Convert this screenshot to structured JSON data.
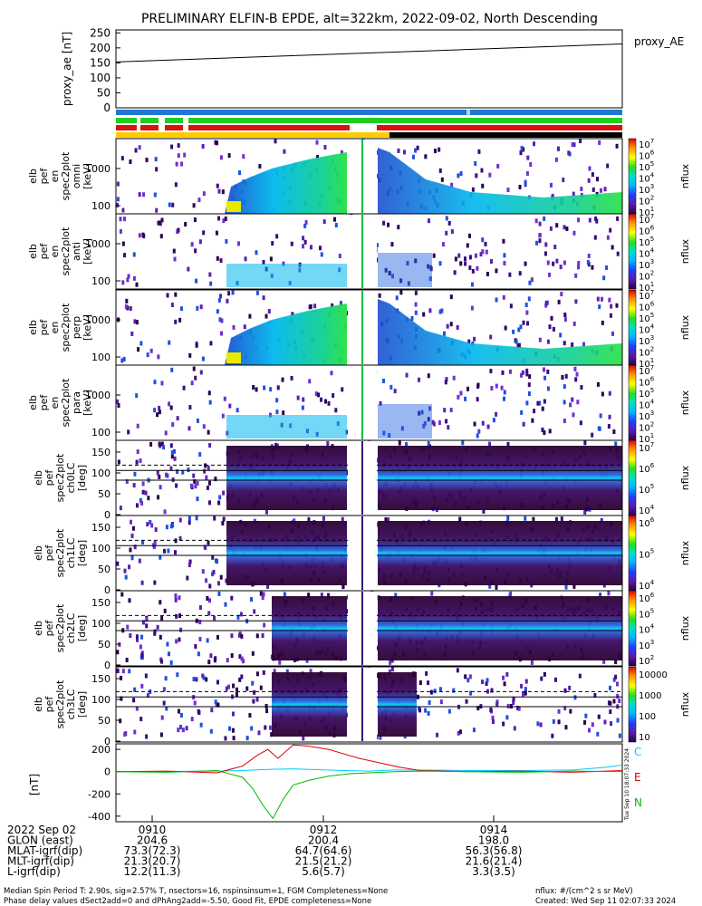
{
  "title": "PRELIMINARY ELFIN-B EPDE, alt=322km, 2022-09-02, North Descending",
  "colors": {
    "bar_blue": "#1f77d4",
    "bar_green": "#22cc22",
    "bar_red": "#dd1111",
    "bar_yellow": "#ffcc00",
    "bar_black": "#000000",
    "ae_line": "#000000",
    "mag_c": "#00ccff",
    "mag_e": "#dd0000",
    "mag_n": "#00bb00"
  },
  "colorbar_ticks_a": [
    "10",
    "10",
    "10",
    "10",
    "10",
    "10",
    "10"
  ],
  "colorbar_exps_a": [
    "1",
    "2",
    "3",
    "4",
    "5",
    "6",
    "7"
  ],
  "panels": [
    {
      "ylabel": [
        "elb",
        "pef",
        "en",
        "spec2plot",
        "omni",
        "[keV]"
      ],
      "yticks": [
        "1000",
        "100"
      ],
      "cb_label": "nflux"
    },
    {
      "ylabel": [
        "elb",
        "pef",
        "en",
        "spec2plot",
        "anti",
        "[keV]"
      ],
      "yticks": [
        "1000",
        "100"
      ],
      "cb_label": "nflux"
    },
    {
      "ylabel": [
        "elb",
        "pef",
        "en",
        "spec2plot",
        "perp",
        "[keV]"
      ],
      "yticks": [
        "1000",
        "100"
      ],
      "cb_label": "nflux"
    },
    {
      "ylabel": [
        "elb",
        "pef",
        "en",
        "spec2plot",
        "para",
        "[keV]"
      ],
      "yticks": [
        "1000",
        "100"
      ],
      "cb_label": "nflux"
    },
    {
      "ylabel": [
        "elb",
        "pef",
        "spec2plot",
        "ch0LC",
        "[deg]"
      ],
      "yticks": [
        "150",
        "100",
        "50",
        "0"
      ],
      "cb_label": "nflux",
      "cb_ticks": [
        "10",
        "10",
        "10",
        "10"
      ],
      "cb_exps": [
        "7",
        "6",
        "5",
        "4"
      ]
    },
    {
      "ylabel": [
        "elb",
        "pef",
        "spec2plot",
        "ch1LC",
        "[deg]"
      ],
      "yticks": [
        "150",
        "100",
        "50",
        "0"
      ],
      "cb_label": "nflux",
      "cb_ticks": [
        "10",
        "10",
        "10"
      ],
      "cb_exps": [
        "6",
        "5",
        "4"
      ]
    },
    {
      "ylabel": [
        "elb",
        "pef",
        "spec2plot",
        "ch2LC",
        "[deg]"
      ],
      "yticks": [
        "150",
        "100",
        "50",
        "0"
      ],
      "cb_label": "nflux",
      "cb_ticks": [
        "10",
        "10",
        "10",
        "10",
        "10"
      ],
      "cb_exps": [
        "6",
        "5",
        "4",
        "3",
        "2"
      ]
    },
    {
      "ylabel": [
        "elb",
        "pef",
        "spec2plot",
        "ch3LC",
        "[deg]"
      ],
      "yticks": [
        "150",
        "100",
        "50",
        "0"
      ],
      "cb_label": "nflux",
      "cb_ticks": [
        "10000",
        "1000",
        "100",
        "10"
      ]
    }
  ],
  "chart_data": [
    {
      "type": "line",
      "title": "PRELIMINARY ELFIN-B EPDE, alt=322km, 2022-09-02, North Descending",
      "ylabel": "proxy_ae [nT]",
      "legend": "proxy_AE",
      "ylim": [
        0,
        260
      ],
      "yticks": [
        "250",
        "200",
        "150",
        "100",
        "50",
        "0"
      ],
      "series": [
        {
          "name": "proxy_AE",
          "x": [
            "0909:00",
            "0915:50"
          ],
          "y": [
            153,
            213
          ]
        }
      ]
    },
    {
      "type": "line",
      "ylabel": "[nT]",
      "ylim": [
        -450,
        250
      ],
      "yticks": [
        "200",
        "0",
        "-200",
        "-400"
      ],
      "legend": [
        "C",
        "E",
        "N"
      ],
      "series": [
        {
          "name": "C",
          "x": [
            0,
            0.2,
            0.25,
            0.3,
            0.35,
            0.45,
            0.5,
            0.55,
            0.6,
            0.7,
            0.8,
            0.9,
            0.97,
            1.0
          ],
          "y": [
            0,
            5,
            10,
            20,
            25,
            10,
            5,
            15,
            15,
            10,
            10,
            15,
            40,
            60
          ]
        },
        {
          "name": "E",
          "x": [
            0,
            0.1,
            0.2,
            0.25,
            0.28,
            0.3,
            0.32,
            0.35,
            0.38,
            0.42,
            0.45,
            0.48,
            0.52,
            0.56,
            0.6,
            0.7,
            0.8,
            0.9,
            1.0
          ],
          "y": [
            0,
            5,
            -10,
            50,
            150,
            200,
            120,
            240,
            230,
            200,
            160,
            120,
            80,
            40,
            10,
            0,
            5,
            -5,
            10
          ]
        },
        {
          "name": "N",
          "x": [
            0,
            0.1,
            0.2,
            0.25,
            0.27,
            0.29,
            0.31,
            0.33,
            0.35,
            0.38,
            0.42,
            0.46,
            0.5,
            0.55,
            0.6,
            0.7,
            0.8,
            0.9,
            1.0
          ],
          "y": [
            0,
            -5,
            10,
            -50,
            -150,
            -300,
            -420,
            -250,
            -120,
            -80,
            -40,
            -20,
            -10,
            0,
            5,
            0,
            -5,
            5,
            0
          ]
        }
      ]
    }
  ],
  "x_axis": {
    "rows": [
      [
        "2022 Sep 02",
        "0910",
        "0912",
        "0914"
      ],
      [
        "GLON (east)",
        "204.6",
        "200.4",
        "198.0"
      ],
      [
        "MLAT-igrf(dip)",
        "73.3(72.3)",
        "64.7(64.6)",
        "56.3(56.8)"
      ],
      [
        "MLT-igrf(dip)",
        "21.3(20.7)",
        "21.5(21.2)",
        "21.6(21.4)"
      ],
      [
        "L-igrf(dip)",
        "12.2(11.3)",
        "5.6(5.7)",
        "3.3(3.5)"
      ]
    ]
  },
  "footer": {
    "line1_left": "Median Spin Period T: 2.90s, sig=2.57% T, nsectors=16, nspinsinsum=1, FGM Completeness=None",
    "line2_left": "Phase delay values dSect2add=0 and dPhAng2add=-5.50, Good Fit, EPDE completeness=None",
    "line1_right": "nflux: #/(cm^2 s sr MeV)",
    "line2_right": "Created: Wed Sep 11 02:07:33 2024",
    "side_stamp": "Tue Sep 10 18:07:33 2024"
  }
}
